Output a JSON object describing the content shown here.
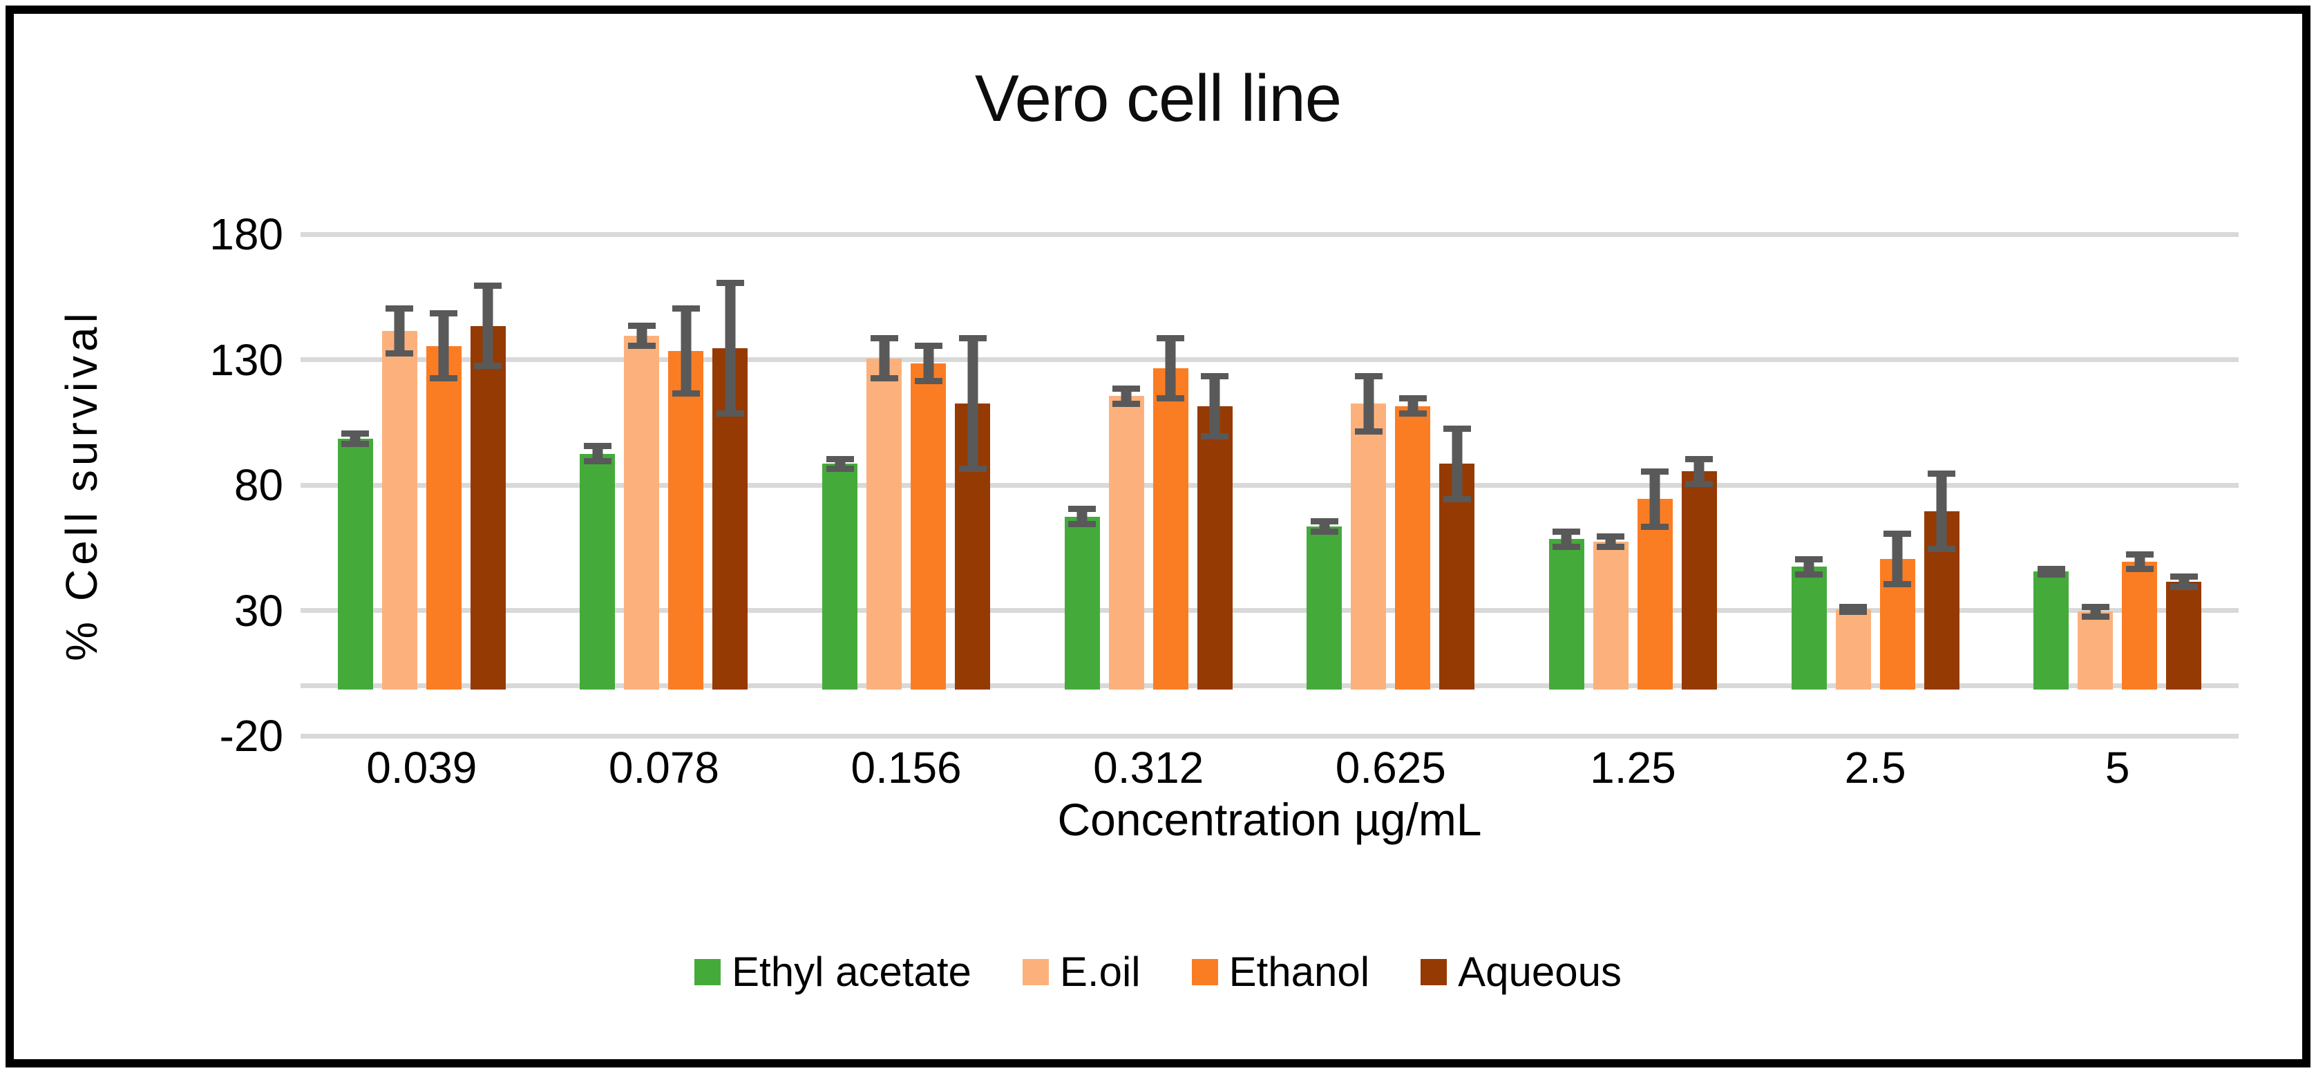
{
  "figure": {
    "background": "#ffffff",
    "frame_border_color": "#000000"
  },
  "chart_data": {
    "type": "bar",
    "title": "Vero cell line",
    "xlabel": "Concentration µg/mL",
    "ylabel": "% Cell survival",
    "ylim": [
      -20,
      180
    ],
    "yticks": [
      180,
      130,
      80,
      30,
      -20
    ],
    "baseline": 0,
    "grid": true,
    "gridline_color": "#d9d9d9",
    "error_bar_color": "#595959",
    "legend_position": "bottom",
    "categories": [
      "0.039",
      "0.078",
      "0.156",
      "0.312",
      "0.625",
      "1.25",
      "2.5",
      "5"
    ],
    "series": [
      {
        "name": "Ethyl acetate",
        "color": "#44ab3b",
        "values": [
          100,
          94,
          90,
          69,
          65,
          60,
          49,
          47
        ],
        "errors": [
          2,
          3,
          2,
          3,
          2,
          3,
          3,
          1
        ]
      },
      {
        "name": "E.oil",
        "color": "#fcb17c",
        "values": [
          143,
          141,
          132,
          117,
          114,
          59,
          32,
          31
        ],
        "errors": [
          9,
          4,
          8,
          3,
          11,
          2,
          1,
          2
        ]
      },
      {
        "name": "Ethanol",
        "color": "#fb7d23",
        "values": [
          137,
          135,
          130,
          128,
          113,
          76,
          52,
          51
        ],
        "errors": [
          13,
          17,
          7,
          12,
          3,
          11,
          10,
          3
        ]
      },
      {
        "name": "Aqueous",
        "color": "#953a03",
        "values": [
          145,
          136,
          114,
          113,
          90,
          87,
          71,
          43
        ],
        "errors": [
          16,
          26,
          26,
          12,
          14,
          5,
          15,
          2
        ]
      }
    ]
  }
}
